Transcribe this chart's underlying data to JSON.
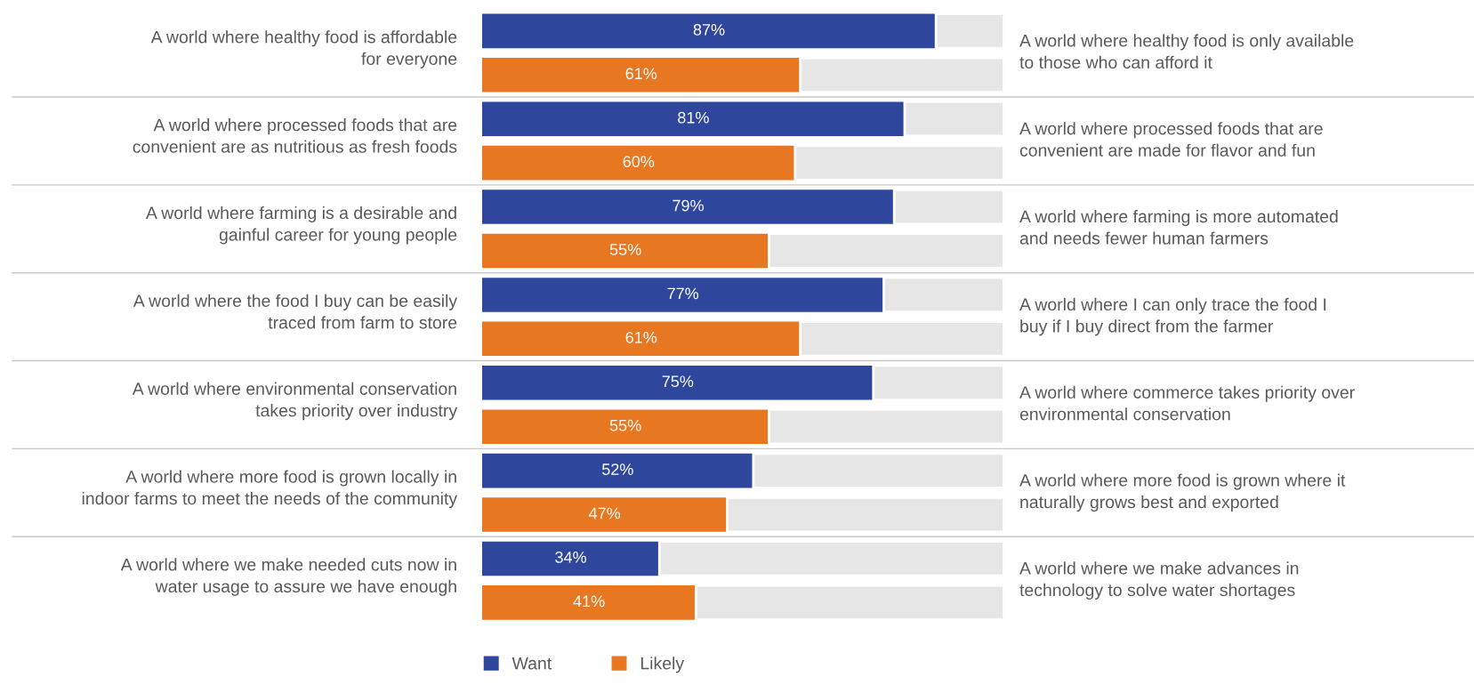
{
  "chart_data": {
    "type": "bar",
    "orientation": "horizontal",
    "stacked": true,
    "legend": "bottom",
    "grid": "y",
    "categories": [
      "A world where healthy food is affordable\nfor everyone",
      null,
      "A world where processed foods that are\nconvenient are as nutritious as fresh foods",
      null,
      "A world where farming is a desirable and\ngainful career for young people",
      null,
      "A world where the food I buy can be easily\ntraced from farm to store",
      null,
      "A world where environmental conservation\ntakes priority over industry",
      null,
      "A world where more food is grown locally in\nindoor farms to meet the needs of the community",
      null,
      "A world where we make needed cuts now in\nwater usage to assure we have enough",
      null
    ],
    "series": [
      {
        "name": "Want",
        "color": "#2e479c",
        "values": [
          87,
          null,
          81,
          null,
          79,
          null,
          77,
          null,
          75,
          null,
          52,
          null,
          34,
          null
        ],
        "value_labels": [
          "87%",
          null,
          "81%",
          null,
          "79%",
          null,
          "77%",
          null,
          "75%",
          null,
          "52%",
          null,
          "34%",
          null
        ]
      },
      {
        "name": "Likely",
        "color": "#e87722",
        "values": [
          null,
          61,
          null,
          60,
          null,
          55,
          null,
          61,
          null,
          55,
          null,
          47,
          null,
          41
        ],
        "value_labels": [
          null,
          "61%",
          null,
          "60%",
          null,
          "55%",
          null,
          "61%",
          null,
          "55%",
          null,
          "47%",
          null,
          "41%"
        ]
      },
      {
        "color": "#e6e6e6",
        "values": [
          13,
          39,
          19,
          40,
          21,
          45,
          23,
          39,
          25,
          45,
          48,
          53,
          66,
          59
        ]
      }
    ],
    "annotations": [
      "A world where healthy food is only available\nto those who can afford it",
      "A world where processed foods that are\nconvenient are made for flavor and fun",
      "A world where farming is more automated\nand needs fewer human farmers",
      "A world where I can only trace the food I\nbuy if I buy direct from the farmer",
      "A world where commerce takes priority over\nenvironmental conservation",
      "A world where more food is grown where it\nnaturally grows best and exported",
      "A world where we make advances in\ntechnology to solve water shortages"
    ]
  }
}
